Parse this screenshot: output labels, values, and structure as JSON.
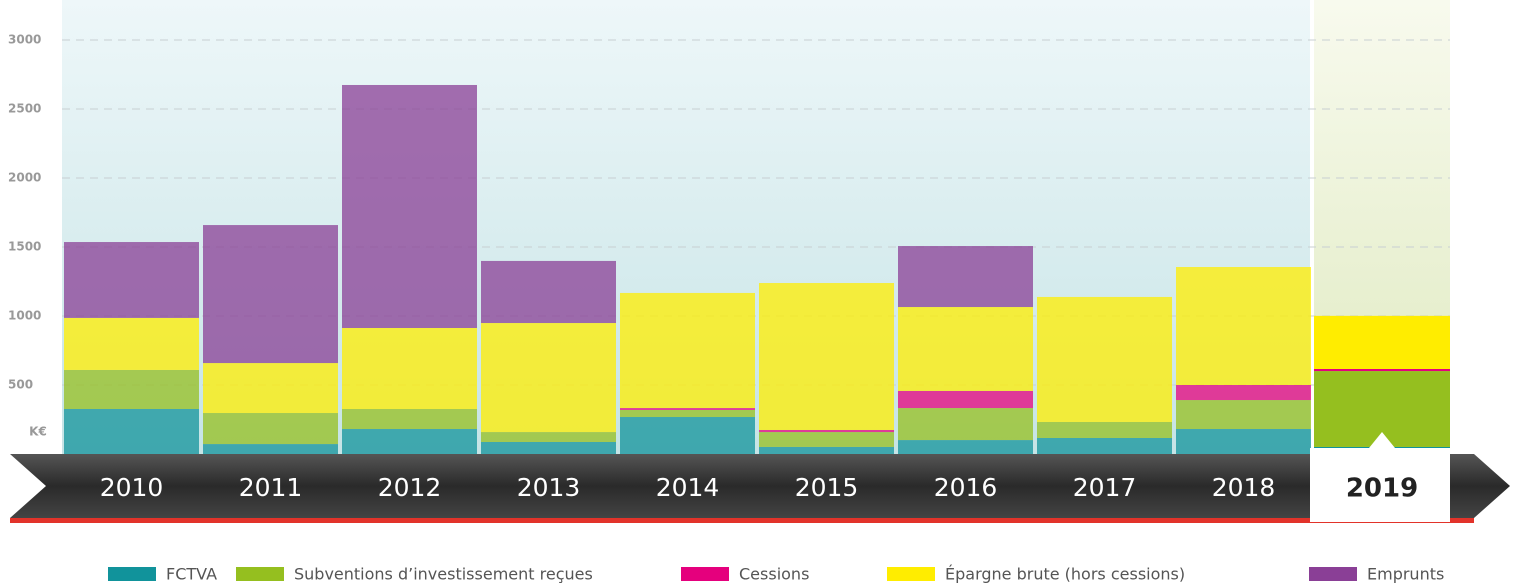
{
  "chart_data": {
    "type": "stacked_bar",
    "y_label": "K€",
    "categories": [
      "2010",
      "2011",
      "2012",
      "2013",
      "2014",
      "2015",
      "2016",
      "2017",
      "2018",
      "2019"
    ],
    "highlight": "2019",
    "series": [
      {
        "name": "FCTVA",
        "color": "#11939b",
        "values": [
          326,
          72,
          181,
          87,
          268,
          51,
          101,
          116,
          181,
          51
        ]
      },
      {
        "name": "Subventions d’investissement reçues",
        "color": "#95bf1f",
        "values": [
          283,
          225,
          145,
          72,
          51,
          108,
          232,
          116,
          210,
          550
        ]
      },
      {
        "name": "Cessions",
        "color": "#e5007d",
        "values": [
          0,
          0,
          0,
          0,
          14,
          15,
          124,
          0,
          109,
          15
        ]
      },
      {
        "name": "Épargne brute (hors cessions)",
        "color": "#ffed00",
        "values": [
          377,
          362,
          587,
          790,
          834,
          1065,
          608,
          906,
          855,
          385
        ]
      },
      {
        "name": "Emprunts",
        "color": "#8a3f96",
        "values": [
          550,
          1000,
          1761,
          450,
          0,
          0,
          442,
          0,
          0,
          0
        ]
      }
    ],
    "ylim": [
      0,
      3000
    ],
    "yticks": [
      500,
      1000,
      1500,
      2000,
      2500,
      3000
    ],
    "grid": true
  }
}
